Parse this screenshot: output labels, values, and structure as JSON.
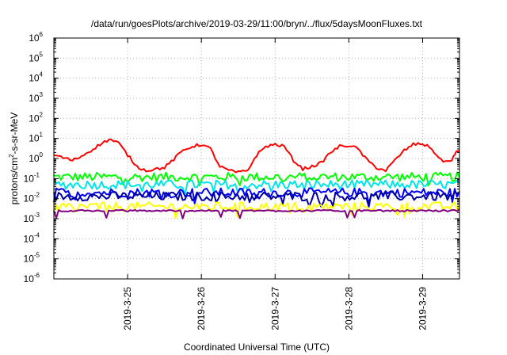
{
  "title": "/data/run/goesPlots/archive/2019-03-29/11:00/bryn/../flux/5daysMoonFluxes.txt",
  "chart_data": {
    "type": "line",
    "title": "/data/run/goesPlots/archive/2019-03-29/11:00/bryn/../flux/5daysMoonFluxes.txt",
    "xlabel": "Coordinated Universal Time (UTC)",
    "ylabel": {
      "base": "protons/cm",
      "sup": "2",
      "rest": "-s-sr-MeV"
    },
    "yscale": "log",
    "ylim": [
      1e-06,
      1000000.0
    ],
    "xlim": [
      "2019-03-24 00:00",
      "2019-03-29 12:00"
    ],
    "x_ticks": [
      "2019-3-25",
      "2019-3-26",
      "2019-3-27",
      "2019-3-28",
      "2019-3-29"
    ],
    "y_ticks": [
      {
        "base": "10",
        "exp": "6"
      },
      {
        "base": "10",
        "exp": "5"
      },
      {
        "base": "10",
        "exp": "4"
      },
      {
        "base": "10",
        "exp": "3"
      },
      {
        "base": "10",
        "exp": "2"
      },
      {
        "base": "10",
        "exp": "1"
      },
      {
        "base": "10",
        "exp": "0"
      },
      {
        "base": "10",
        "exp": "-1"
      },
      {
        "base": "10",
        "exp": "-2"
      },
      {
        "base": "10",
        "exp": "-3"
      },
      {
        "base": "10",
        "exp": "-4"
      },
      {
        "base": "10",
        "exp": "-5"
      },
      {
        "base": "10",
        "exp": "-6"
      }
    ],
    "grid": true,
    "series": [
      {
        "color": "#00ff00",
        "level": 0.12
      },
      {
        "color": "#00e5e5",
        "level": 0.05
      },
      {
        "color": "#0000ff",
        "level": 0.02
      },
      {
        "color": "#0000a0",
        "level": 0.013
      },
      {
        "color": "#ffff00",
        "level": 0.004
      },
      {
        "color": "#800080",
        "level": 0.0025
      },
      {
        "color": "#ff0000",
        "points": [
          [
            "2019-03-24 00:00",
            1.5
          ],
          [
            "2019-03-24 03:00",
            1.1
          ],
          [
            "2019-03-24 06:00",
            0.8
          ],
          [
            "2019-03-24 09:00",
            1.3
          ],
          [
            "2019-03-24 12:00",
            2.5
          ],
          [
            "2019-03-24 15:00",
            5.0
          ],
          [
            "2019-03-24 18:00",
            9.0
          ],
          [
            "2019-03-24 21:00",
            6.0
          ],
          [
            "2019-03-25 00:00",
            1.5
          ],
          [
            "2019-03-25 03:00",
            0.4
          ],
          [
            "2019-03-25 06:00",
            0.25
          ],
          [
            "2019-03-25 09:00",
            0.3
          ],
          [
            "2019-03-25 12:00",
            0.35
          ],
          [
            "2019-03-25 15:00",
            0.9
          ],
          [
            "2019-03-25 18:00",
            2.5
          ],
          [
            "2019-03-25 21:00",
            4.0
          ],
          [
            "2019-03-26 00:00",
            5.0
          ],
          [
            "2019-03-26 03:00",
            3.0
          ],
          [
            "2019-03-26 06:00",
            0.4
          ],
          [
            "2019-03-26 09:00",
            0.25
          ],
          [
            "2019-03-26 12:00",
            0.2
          ],
          [
            "2019-03-26 15:00",
            0.25
          ],
          [
            "2019-03-26 18:00",
            1.5
          ],
          [
            "2019-03-26 21:00",
            4.0
          ],
          [
            "2019-03-27 00:00",
            5.0
          ],
          [
            "2019-03-27 03:00",
            4.0
          ],
          [
            "2019-03-27 06:00",
            0.8
          ],
          [
            "2019-03-27 09:00",
            0.3
          ],
          [
            "2019-03-27 12:00",
            0.4
          ],
          [
            "2019-03-27 15:00",
            0.6
          ],
          [
            "2019-03-27 18:00",
            2.0
          ],
          [
            "2019-03-27 21:00",
            4.0
          ],
          [
            "2019-03-28 00:00",
            4.5
          ],
          [
            "2019-03-28 03:00",
            3.0
          ],
          [
            "2019-03-28 06:00",
            0.8
          ],
          [
            "2019-03-28 09:00",
            0.35
          ],
          [
            "2019-03-28 12:00",
            0.25
          ],
          [
            "2019-03-28 15:00",
            0.8
          ],
          [
            "2019-03-28 18:00",
            2.5
          ],
          [
            "2019-03-28 21:00",
            5.0
          ],
          [
            "2019-03-29 00:00",
            5.5
          ],
          [
            "2019-03-29 03:00",
            3.0
          ],
          [
            "2019-03-29 06:00",
            0.8
          ],
          [
            "2019-03-29 09:00",
            0.7
          ],
          [
            "2019-03-29 11:00",
            2.0
          ],
          [
            "2019-03-29 12:00",
            2.5
          ]
        ]
      }
    ]
  }
}
